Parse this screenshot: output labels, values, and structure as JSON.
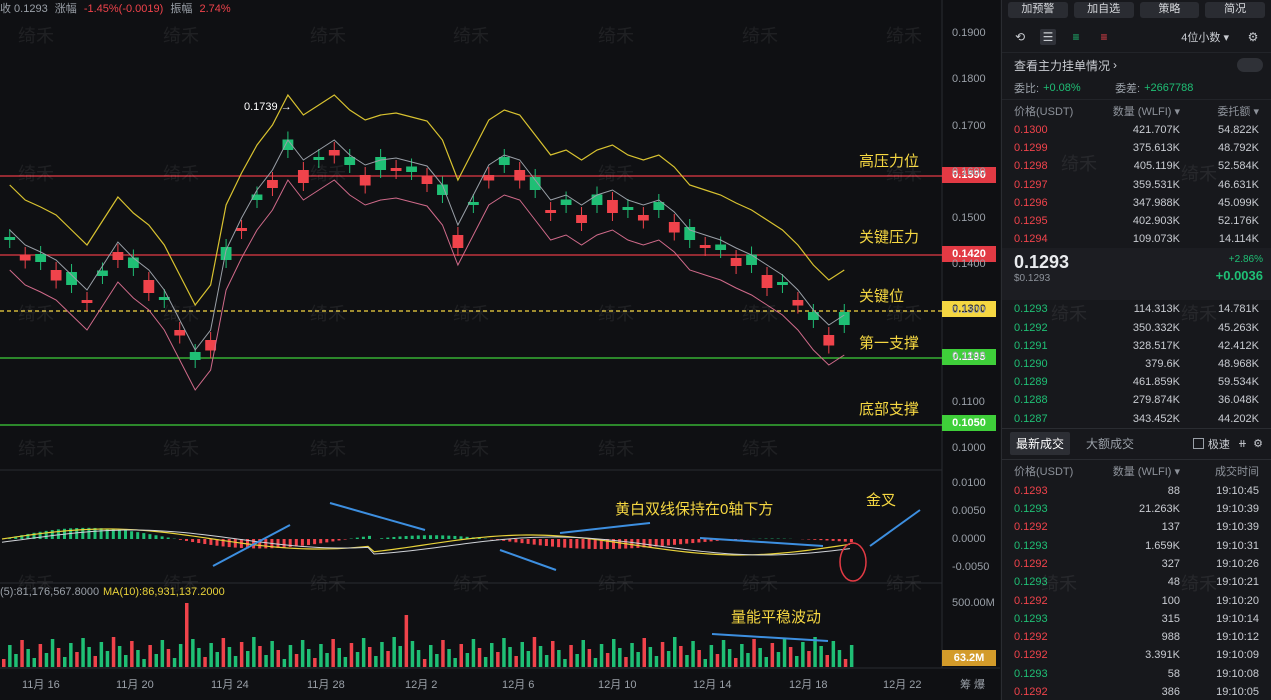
{
  "topbar": {
    "close_label": "收 0.1293",
    "change_label": "涨幅",
    "change_value": "-1.45%(-0.0019)",
    "amp_label": "振幅",
    "amp_value": "2.74%"
  },
  "watermark": "绮禾",
  "colors": {
    "up": "#1fbf75",
    "down": "#f0434b",
    "accent": "#f5d742",
    "panel": "#17181c"
  },
  "yaxis": [
    "0.1900",
    "0.1800",
    "0.1700",
    "0.1600",
    "0.1500",
    "0.1400",
    "0.1300",
    "0.1200",
    "0.1100",
    "0.1000"
  ],
  "macd_axis": [
    "0.0100",
    "0.0050",
    "0.0000",
    "-0.0050"
  ],
  "vol_axis": [
    "500.00M"
  ],
  "xaxis": [
    "11月 16",
    "11月 20",
    "11月 24",
    "11月 28",
    "12月 2",
    "12月 6",
    "12月 10",
    "12月 14",
    "12月 18",
    "12月 22"
  ],
  "xaxis_tail": "筹 爆",
  "peak_marker": "0.1739 →",
  "levels": [
    {
      "name": "高压力位",
      "price": "0.1590",
      "color": "#e23a44"
    },
    {
      "name": "关键压力",
      "price": "0.1420",
      "color": "#e23a44"
    },
    {
      "name": "关键位",
      "price": "0.1300",
      "color": "#f5d742"
    },
    {
      "name": "第一支撑",
      "price": "0.1195",
      "color": "#3fcf3a"
    },
    {
      "name": "底部支撑",
      "price": "0.1050",
      "color": "#3fcf3a"
    }
  ],
  "annotations": {
    "macd_note": "黄白双线保持在0轴下方",
    "golden_cross": "金叉",
    "volume_note": "量能平稳波动"
  },
  "volume_ma": {
    "ma5": "(5):81,176,567.8000",
    "ma10": "MA(10):86,931,137.2000"
  },
  "volume_tag": "63.2M",
  "side": {
    "buttons": [
      "加预警",
      "加自选",
      "策略",
      "简况"
    ],
    "precision": "4位小数",
    "view_main_orders": "查看主力挂单情况",
    "commission_ratio_label": "委比:",
    "commission_ratio": "+0.08%",
    "commission_diff_label": "委差:",
    "commission_diff": "+2667788",
    "ob_headers": [
      "价格(USDT)",
      "数量 (WLFI)",
      "委托额"
    ],
    "asks": [
      [
        "0.1300",
        "421.707K",
        "54.822K"
      ],
      [
        "0.1299",
        "375.613K",
        "48.792K"
      ],
      [
        "0.1298",
        "405.119K",
        "52.584K"
      ],
      [
        "0.1297",
        "359.531K",
        "46.631K"
      ],
      [
        "0.1296",
        "347.988K",
        "45.099K"
      ],
      [
        "0.1295",
        "402.903K",
        "52.176K"
      ],
      [
        "0.1294",
        "109.073K",
        "14.114K"
      ]
    ],
    "last_price": "0.1293",
    "last_price_sub": "$0.1293",
    "change_pct": "+2.86%",
    "change_abs": "+0.0036",
    "bids": [
      [
        "0.1293",
        "114.313K",
        "14.781K"
      ],
      [
        "0.1292",
        "350.332K",
        "45.263K"
      ],
      [
        "0.1291",
        "328.517K",
        "42.412K"
      ],
      [
        "0.1290",
        "379.6K",
        "48.968K"
      ],
      [
        "0.1289",
        "461.859K",
        "59.534K"
      ],
      [
        "0.1288",
        "279.874K",
        "36.048K"
      ],
      [
        "0.1287",
        "343.452K",
        "44.202K"
      ]
    ],
    "trade_tabs": [
      "最新成交",
      "大额成交"
    ],
    "fast_label": "极速",
    "trade_headers": [
      "价格(USDT)",
      "数量 (WLFI)",
      "成交时间"
    ],
    "trades": [
      [
        "0.1293",
        "88",
        "19:10:45",
        "down"
      ],
      [
        "0.1293",
        "21.263K",
        "19:10:39",
        "up"
      ],
      [
        "0.1292",
        "137",
        "19:10:39",
        "down"
      ],
      [
        "0.1293",
        "1.659K",
        "19:10:31",
        "up"
      ],
      [
        "0.1292",
        "327",
        "19:10:26",
        "down"
      ],
      [
        "0.1293",
        "48",
        "19:10:21",
        "up"
      ],
      [
        "0.1292",
        "100",
        "19:10:20",
        "down"
      ],
      [
        "0.1293",
        "315",
        "19:10:14",
        "up"
      ],
      [
        "0.1292",
        "988",
        "19:10:12",
        "down"
      ],
      [
        "0.1292",
        "3.391K",
        "19:10:09",
        "down"
      ],
      [
        "0.1293",
        "58",
        "19:10:08",
        "up"
      ],
      [
        "0.1292",
        "386",
        "19:10:05",
        "down"
      ]
    ]
  }
}
